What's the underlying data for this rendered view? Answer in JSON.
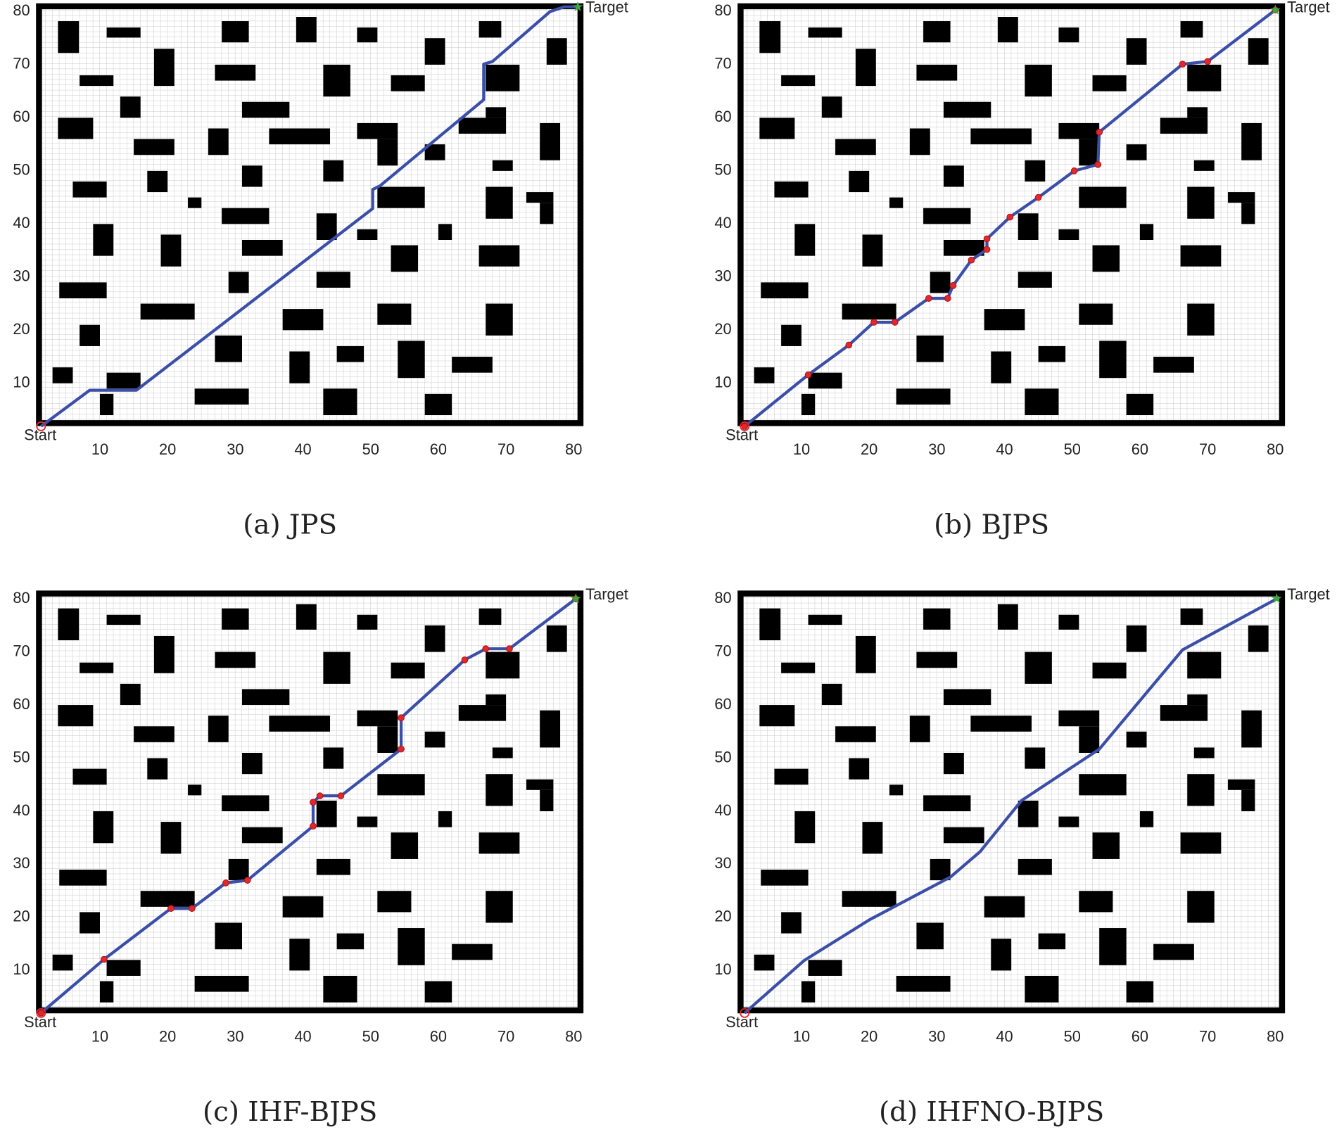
{
  "map": {
    "obstacles": [
      [
        3.8,
        72.2,
        6.9,
        78.2
      ],
      [
        11,
        75.1,
        16,
        77
      ],
      [
        28,
        74.2,
        32,
        78.2
      ],
      [
        39,
        74.2,
        42,
        79
      ],
      [
        48,
        74.2,
        51,
        77
      ],
      [
        66,
        75.1,
        69.3,
        78.2
      ],
      [
        76,
        70,
        79,
        75
      ],
      [
        18,
        66,
        21,
        73
      ],
      [
        7,
        66,
        12,
        68
      ],
      [
        27,
        67,
        33,
        70
      ],
      [
        43,
        64,
        47,
        70
      ],
      [
        53,
        65,
        58,
        68
      ],
      [
        58,
        70,
        61,
        75
      ],
      [
        67,
        65,
        72,
        70
      ],
      [
        13,
        60,
        16,
        64
      ],
      [
        31,
        60,
        38,
        63
      ],
      [
        3.8,
        56,
        9,
        60
      ],
      [
        15,
        53,
        21,
        56
      ],
      [
        26,
        53,
        29,
        58
      ],
      [
        35,
        55,
        44,
        58
      ],
      [
        48,
        56,
        54,
        59
      ],
      [
        51,
        51,
        54,
        56
      ],
      [
        63,
        57,
        70,
        60
      ],
      [
        67,
        60,
        70,
        62
      ],
      [
        75,
        52,
        78,
        59
      ],
      [
        58,
        52,
        61,
        55
      ],
      [
        6,
        45,
        11,
        48
      ],
      [
        17,
        46,
        20,
        50
      ],
      [
        31,
        47,
        34,
        51
      ],
      [
        43,
        48,
        46,
        52
      ],
      [
        51,
        43,
        58,
        47
      ],
      [
        68,
        50,
        71,
        52
      ],
      [
        67,
        41,
        71,
        47
      ],
      [
        73,
        44,
        77,
        46
      ],
      [
        75,
        40,
        77,
        44
      ],
      [
        23,
        43,
        25,
        45
      ],
      [
        28,
        40,
        35,
        43
      ],
      [
        9,
        34,
        12,
        40
      ],
      [
        19,
        32,
        22,
        38
      ],
      [
        31,
        34,
        37,
        37
      ],
      [
        42,
        37,
        45,
        42
      ],
      [
        48,
        37,
        51,
        39
      ],
      [
        53,
        31,
        57,
        36
      ],
      [
        60,
        37,
        62,
        40
      ],
      [
        66,
        32,
        72,
        36
      ],
      [
        4,
        26,
        11,
        29
      ],
      [
        29,
        27,
        32,
        31
      ],
      [
        42,
        28,
        47,
        31
      ],
      [
        16,
        22,
        24,
        25
      ],
      [
        37,
        20,
        43,
        24
      ],
      [
        51,
        21,
        56,
        25
      ],
      [
        67,
        19,
        71,
        25
      ],
      [
        7,
        17,
        10,
        21
      ],
      [
        27,
        14,
        31,
        19
      ],
      [
        38,
        10,
        41,
        16
      ],
      [
        45,
        14,
        49,
        17
      ],
      [
        54,
        11,
        58,
        18
      ],
      [
        62,
        12,
        68,
        15
      ],
      [
        3,
        10,
        6,
        13
      ],
      [
        11,
        9,
        16,
        12
      ],
      [
        10,
        4,
        12,
        8
      ],
      [
        24,
        6,
        32,
        9
      ],
      [
        43,
        4,
        48,
        9
      ],
      [
        58,
        4,
        62,
        8
      ]
    ]
  },
  "chart_data": [
    {
      "type": "line",
      "title": "(a) JPS",
      "start_label": "Start",
      "target_label": "Target",
      "xlim": [
        1,
        81
      ],
      "ylim": [
        2.5,
        81
      ],
      "xticks": [
        10,
        20,
        30,
        40,
        50,
        60,
        70,
        80
      ],
      "yticks": [
        10,
        20,
        30,
        40,
        50,
        60,
        70,
        80
      ],
      "color": "#3b4ea8",
      "markers": false,
      "marker_color": "#3b4ea8",
      "x": [
        1.3,
        8.5,
        15.4,
        50.3,
        50.3,
        51.4,
        66.7,
        66.7,
        68,
        76.5,
        78.6,
        80.6
      ],
      "values": [
        1.9,
        8.7,
        8.7,
        42.9,
        46.5,
        47.2,
        63.4,
        70.1,
        70.6,
        80,
        80.9,
        80.9
      ]
    },
    {
      "type": "line",
      "title": "(b) BJPS",
      "start_label": "Start",
      "target_label": "Target",
      "xlim": [
        1,
        81
      ],
      "ylim": [
        2.5,
        81
      ],
      "xticks": [
        10,
        20,
        30,
        40,
        50,
        60,
        70,
        80
      ],
      "yticks": [
        10,
        20,
        30,
        40,
        50,
        60,
        70,
        80
      ],
      "color": "#3b4ea8",
      "markers": true,
      "marker_color": "#e0282e",
      "x": [
        1.6,
        11,
        17,
        20.7,
        23.8,
        28.8,
        31.6,
        32.4,
        35.1,
        37.4,
        37.4,
        40.8,
        45,
        50.3,
        53.8,
        54,
        66.3,
        70,
        80
      ],
      "values": [
        1.9,
        11.6,
        17.2,
        21.5,
        21.5,
        26,
        26,
        28.4,
        33.2,
        35.2,
        37.2,
        41.3,
        45,
        50,
        51.2,
        57.3,
        70.1,
        70.6,
        80.3
      ]
    },
    {
      "type": "line",
      "title": "(c) IHF-BJPS",
      "start_label": "Start",
      "target_label": "Target",
      "xlim": [
        1,
        81
      ],
      "ylim": [
        2.5,
        81
      ],
      "xticks": [
        10,
        20,
        30,
        40,
        50,
        60,
        70,
        80
      ],
      "yticks": [
        10,
        20,
        30,
        40,
        50,
        60,
        70,
        80
      ],
      "color": "#3b4ea8",
      "markers": true,
      "marker_color": "#e0282e",
      "x": [
        1.3,
        10.6,
        20.5,
        23.6,
        28.6,
        31.8,
        41.5,
        41.5,
        42.5,
        45.6,
        54.5,
        54.5,
        63.9,
        67,
        70.5,
        80.3
      ],
      "values": [
        2,
        12.1,
        21.7,
        21.7,
        26.5,
        27,
        37.2,
        41.7,
        42.9,
        42.9,
        51.7,
        57.6,
        68.5,
        70.6,
        70.6,
        80
      ]
    },
    {
      "type": "line",
      "title": "(d) IHFNO-BJPS",
      "start_label": "Start",
      "target_label": "Target",
      "xlim": [
        1,
        81
      ],
      "ylim": [
        2.5,
        81
      ],
      "xticks": [
        10,
        20,
        30,
        40,
        50,
        60,
        70,
        80
      ],
      "yticks": [
        10,
        20,
        30,
        40,
        50,
        60,
        70,
        80
      ],
      "color": "#3b4ea8",
      "markers": false,
      "marker_color": "#3b4ea8",
      "x": [
        1.6,
        10.4,
        20.1,
        32,
        36.4,
        42.5,
        54,
        66.3,
        80.2
      ],
      "values": [
        2,
        11.9,
        19.6,
        27.6,
        32.4,
        42,
        51.7,
        70.4,
        80
      ]
    }
  ]
}
